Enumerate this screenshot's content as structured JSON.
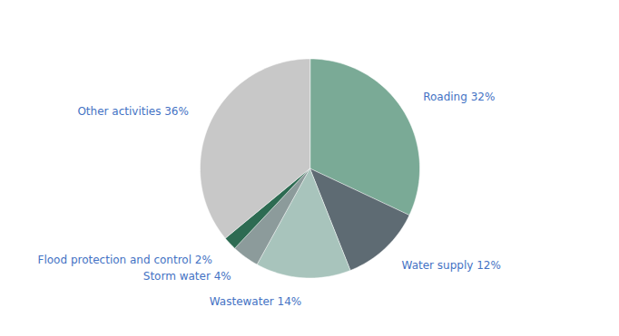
{
  "chart_data": {
    "type": "pie",
    "categories": [
      "Roading 32%",
      "Water supply 12%",
      "Wastewater 14%",
      "Storm water 4%",
      "Flood protection and control 2%",
      "Other activities 36%"
    ],
    "values": [
      32,
      12,
      14,
      4,
      2,
      36
    ],
    "colors": [
      "#7aaa96",
      "#5e6b73",
      "#a8c4bc",
      "#8c9b9b",
      "#2d6b52",
      "#c8c8c8"
    ]
  }
}
